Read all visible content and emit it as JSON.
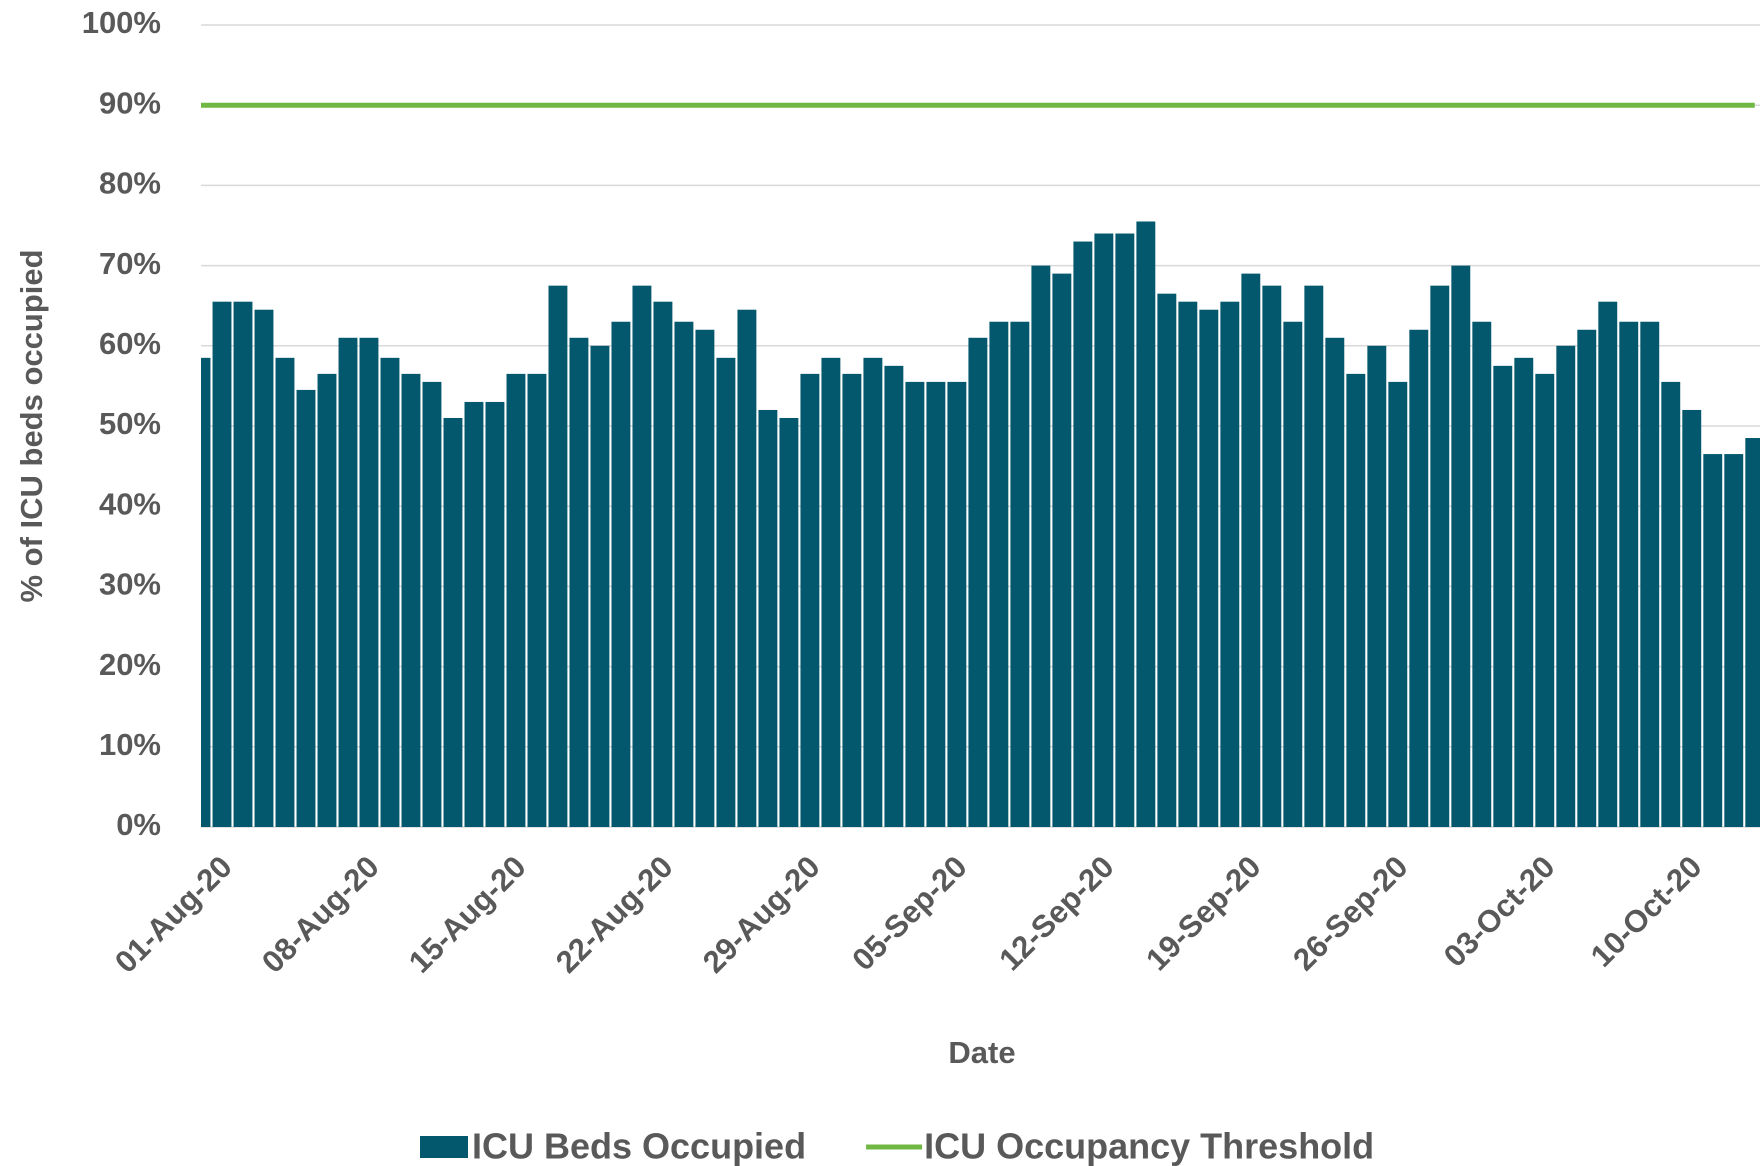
{
  "chart_data": {
    "type": "bar",
    "y_axis_label": "% of ICU beds occupied",
    "x_axis_label": "Date",
    "categories": [
      null,
      "01-Aug-20",
      null,
      null,
      null,
      null,
      null,
      null,
      "08-Aug-20",
      null,
      null,
      null,
      null,
      null,
      null,
      "15-Aug-20",
      null,
      null,
      null,
      null,
      null,
      null,
      "22-Aug-20",
      null,
      null,
      null,
      null,
      null,
      null,
      "29-Aug-20",
      null,
      null,
      null,
      null,
      null,
      null,
      "05-Sep-20",
      null,
      null,
      null,
      null,
      null,
      null,
      "12-Sep-20",
      null,
      null,
      null,
      null,
      null,
      null,
      "19-Sep-20",
      null,
      null,
      null,
      null,
      null,
      null,
      "26-Sep-20",
      null,
      null,
      null,
      null,
      null,
      null,
      "03-Oct-20",
      null,
      null,
      null,
      null,
      null,
      null,
      "10-Oct-20",
      null,
      null,
      null
    ],
    "series": [
      {
        "name": "ICU Beds Occupied",
        "color": "#04586d",
        "type": "bar",
        "values": [
          58.5,
          65.5,
          65.5,
          64.5,
          58.5,
          54.5,
          56.5,
          61,
          61,
          58.5,
          56.5,
          55.5,
          51,
          53,
          53,
          56.5,
          56.5,
          67.5,
          61,
          60,
          63,
          67.5,
          65.5,
          63,
          62,
          58.5,
          64.5,
          52,
          51,
          56.5,
          58.5,
          56.5,
          58.5,
          57.5,
          55.5,
          55.5,
          55.5,
          61,
          63,
          63,
          70,
          69,
          73,
          74,
          74,
          75.5,
          66.5,
          65.5,
          64.5,
          65.5,
          69,
          67.5,
          63,
          67.5,
          61,
          56.5,
          60,
          55.5,
          62,
          67.5,
          70,
          63,
          57.5,
          58.5,
          56.5,
          60,
          62,
          65.5,
          63,
          63,
          55.5,
          52,
          46.5,
          46.5,
          48.5
        ]
      },
      {
        "name": "ICU Occupancy Threshold",
        "color": "#70b843",
        "type": "line",
        "values": [
          90,
          90,
          90,
          90,
          90,
          90,
          90,
          90,
          90,
          90,
          90,
          90,
          90,
          90,
          90,
          90,
          90,
          90,
          90,
          90,
          90,
          90,
          90,
          90,
          90,
          90,
          90,
          90,
          90,
          90,
          90,
          90,
          90,
          90,
          90,
          90,
          90,
          90,
          90,
          90,
          90,
          90,
          90,
          90,
          90,
          90,
          90,
          90,
          90,
          90,
          90,
          90,
          90,
          90,
          90,
          90,
          90,
          90,
          90,
          90,
          90,
          90,
          90,
          90,
          90,
          90,
          90,
          90,
          90,
          90,
          90,
          90,
          90,
          90,
          90
        ]
      }
    ],
    "ylim": [
      0,
      100
    ],
    "yticks": [
      {
        "value": 0,
        "label": "0%"
      },
      {
        "value": 10,
        "label": "10%"
      },
      {
        "value": 20,
        "label": "20%"
      },
      {
        "value": 30,
        "label": "30%"
      },
      {
        "value": 40,
        "label": "40%"
      },
      {
        "value": 50,
        "label": "50%"
      },
      {
        "value": 60,
        "label": "60%"
      },
      {
        "value": 70,
        "label": "70%"
      },
      {
        "value": 80,
        "label": "80%"
      },
      {
        "value": 90,
        "label": "90%"
      },
      {
        "value": 100,
        "label": "100%"
      }
    ],
    "grid": true
  }
}
